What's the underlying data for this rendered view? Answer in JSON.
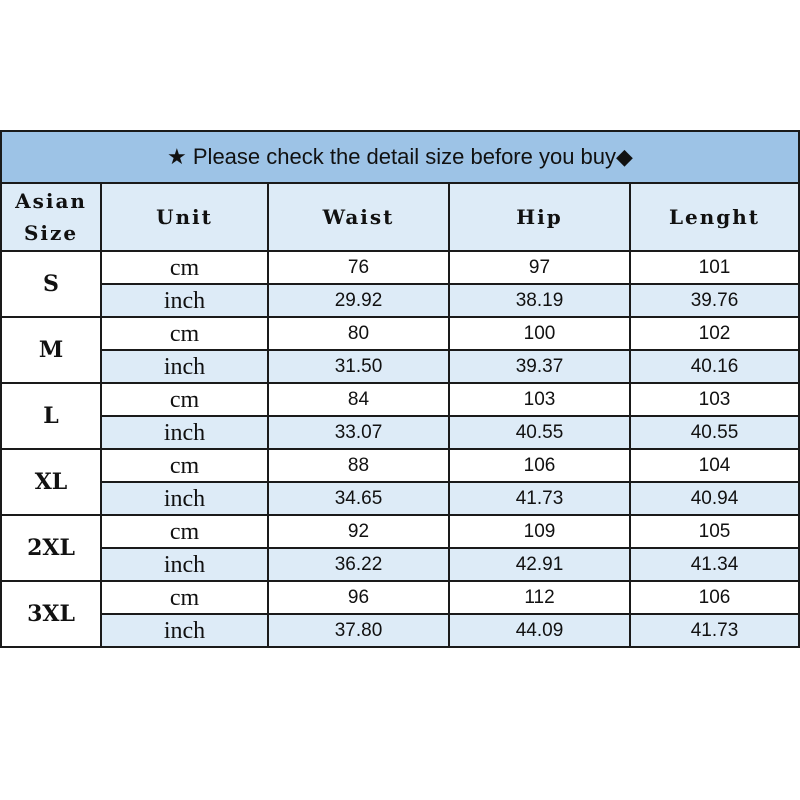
{
  "title": "★ Please check the detail size before you buy◆",
  "headers": [
    "Asian Size",
    "Unit",
    "Waist",
    "Hip",
    "Lenght"
  ],
  "sizes": [
    {
      "size": "S",
      "rows": [
        {
          "unit": "cm",
          "waist": "76",
          "hip": "97",
          "length": "101"
        },
        {
          "unit": "inch",
          "waist": "29.92",
          "hip": "38.19",
          "length": "39.76"
        }
      ]
    },
    {
      "size": "M",
      "rows": [
        {
          "unit": "cm",
          "waist": "80",
          "hip": "100",
          "length": "102"
        },
        {
          "unit": "inch",
          "waist": "31.50",
          "hip": "39.37",
          "length": "40.16"
        }
      ]
    },
    {
      "size": "L",
      "rows": [
        {
          "unit": "cm",
          "waist": "84",
          "hip": "103",
          "length": "103"
        },
        {
          "unit": "inch",
          "waist": "33.07",
          "hip": "40.55",
          "length": "40.55"
        }
      ]
    },
    {
      "size": "XL",
      "rows": [
        {
          "unit": "cm",
          "waist": "88",
          "hip": "106",
          "length": "104"
        },
        {
          "unit": "inch",
          "waist": "34.65",
          "hip": "41.73",
          "length": "40.94"
        }
      ]
    },
    {
      "size": "2XL",
      "rows": [
        {
          "unit": "cm",
          "waist": "92",
          "hip": "109",
          "length": "105"
        },
        {
          "unit": "inch",
          "waist": "36.22",
          "hip": "42.91",
          "length": "41.34"
        }
      ]
    },
    {
      "size": "3XL",
      "rows": [
        {
          "unit": "cm",
          "waist": "96",
          "hip": "112",
          "length": "106"
        },
        {
          "unit": "inch",
          "waist": "37.80",
          "hip": "44.09",
          "length": "41.73"
        }
      ]
    }
  ],
  "colors": {
    "title_bg": "#9dc3e6",
    "header_bg": "#ddebf7",
    "inch_row_bg": "#ddebf7"
  }
}
